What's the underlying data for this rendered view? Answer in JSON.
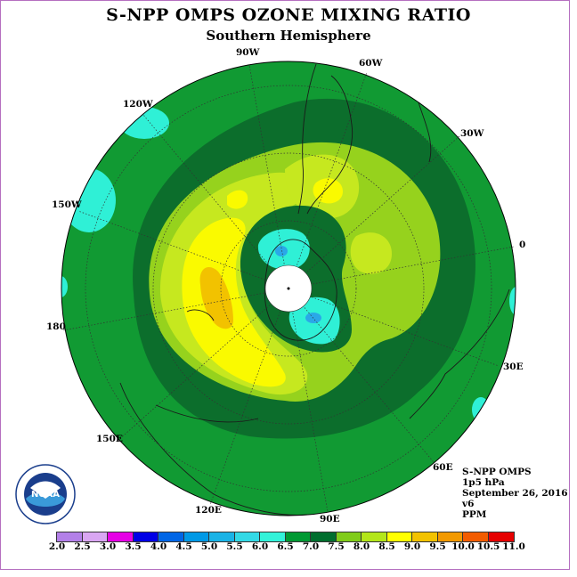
{
  "title": "S-NPP OMPS OZONE MIXING RATIO",
  "subtitle": "Southern Hemisphere",
  "lon_labels": {
    "w90": "90W",
    "w60": "60W",
    "w30": "30W",
    "w120": "120W",
    "w150": "150W",
    "zero": "0",
    "d180": "180",
    "e30": "30E",
    "e60": "60E",
    "e90": "90E",
    "e120": "120E",
    "e150": "150E"
  },
  "info": {
    "instrument": "S-NPP OMPS",
    "level": "1p5 hPa",
    "date": "September 26, 2016",
    "version": "v6",
    "units": "PPM"
  },
  "logo": {
    "text": "NOAA",
    "ring_text": "NATIONAL OCEANIC AND ATMOSPHERIC ADMINISTRATION · U.S. DEPARTMENT OF COMMERCE"
  },
  "colorbar": {
    "labels": [
      "2.0",
      "2.5",
      "3.0",
      "3.5",
      "4.0",
      "4.5",
      "5.0",
      "5.5",
      "6.0",
      "6.5",
      "7.0",
      "7.5",
      "8.0",
      "8.5",
      "9.0",
      "9.5",
      "10.0",
      "10.5",
      "11.0"
    ],
    "colors": [
      "#b380e8",
      "#d9a6f2",
      "#e600e6",
      "#0000e6",
      "#0066e6",
      "#0099e6",
      "#1ab3e6",
      "#33d9e6",
      "#33f2d9",
      "#009933",
      "#006e2e",
      "#80cc1a",
      "#b3e61a",
      "#ffff00",
      "#f2c200",
      "#f29900",
      "#f25c00",
      "#e60000",
      "#7a4a26"
    ]
  },
  "map_colors": {
    "land_outline": "#1a1a1a",
    "level_6_5": "#119a33",
    "level_7_0": "#0c6e2c",
    "level_7_5": "#96d21d",
    "level_8_0": "#c6e81f",
    "level_8_5": "#fafa00",
    "level_9_0": "#f2c200",
    "level_6_0": "#2ff0d6",
    "level_5_5": "#2aa8e8"
  }
}
